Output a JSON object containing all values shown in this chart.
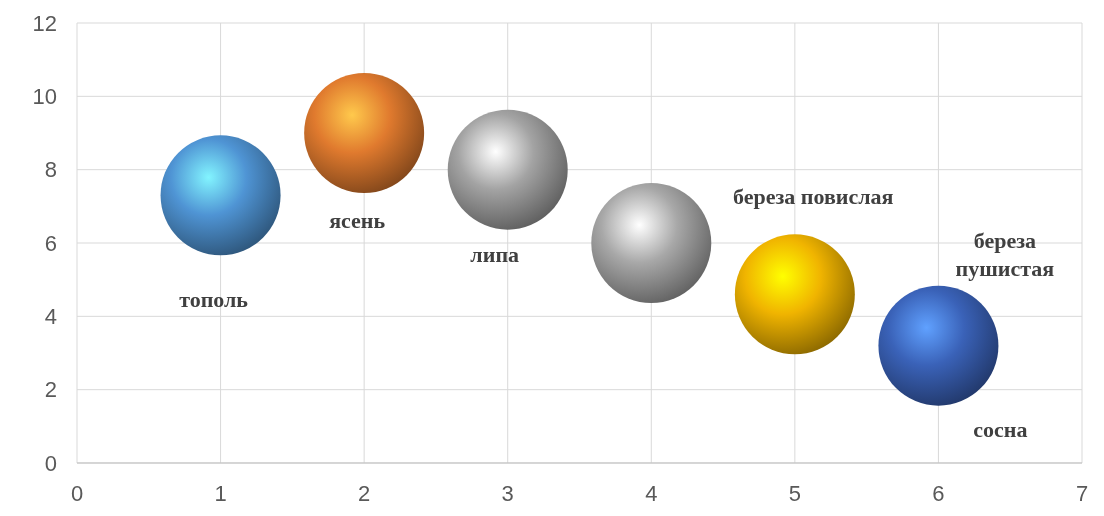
{
  "chart_data": {
    "type": "bubble",
    "x": [
      1,
      2,
      3,
      4,
      5,
      6
    ],
    "values": [
      7.3,
      9,
      8,
      6,
      4.6,
      3.2
    ],
    "sizes": [
      1,
      1,
      1,
      1,
      1,
      1
    ],
    "colors": [
      "#4f94d4",
      "#e07a2e",
      "#a3a3a3",
      "#a8a8a8",
      "#f0b400",
      "#3a62b8"
    ],
    "xlim": [
      0,
      7
    ],
    "xticks": [
      0,
      1,
      2,
      3,
      4,
      5,
      6,
      7
    ],
    "ylim": [
      0,
      12
    ],
    "yticks": [
      0,
      2,
      4,
      6,
      8,
      10,
      12
    ],
    "grid": true,
    "annotations": [
      "тополь",
      "ясень",
      "липа",
      "береза повислая",
      "береза пушистая",
      "сосна"
    ]
  }
}
